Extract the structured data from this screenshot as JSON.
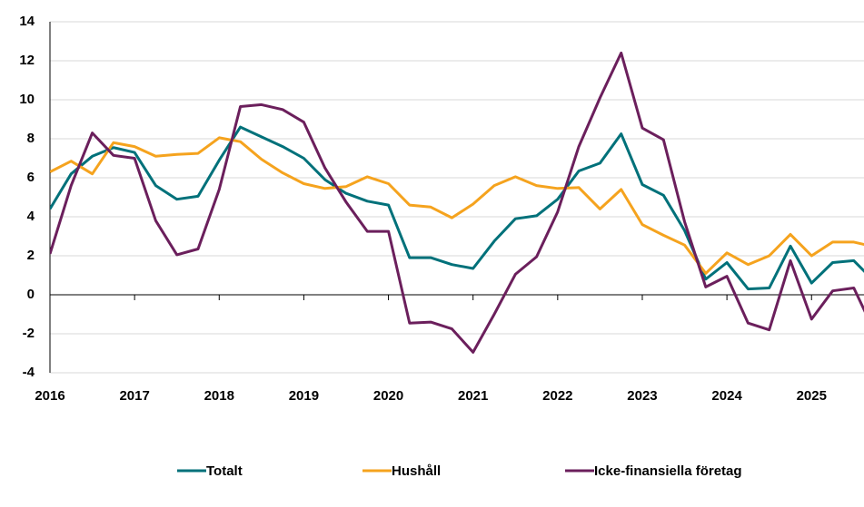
{
  "chart_data": {
    "type": "line",
    "x": [
      2016,
      2016.25,
      2016.5,
      2016.75,
      2017,
      2017.25,
      2017.5,
      2017.75,
      2018,
      2018.25,
      2018.5,
      2018.75,
      2019,
      2019.25,
      2019.5,
      2019.75,
      2020,
      2020.25,
      2020.5,
      2020.75,
      2021,
      2021.25,
      2021.5,
      2021.75,
      2022,
      2022.25,
      2022.5,
      2022.75,
      2023,
      2023.25,
      2023.5,
      2023.75,
      2024,
      2024.25,
      2024.5,
      2024.75,
      2025,
      2025.25,
      2025.5,
      2025.75
    ],
    "series": [
      {
        "name": "Totalt",
        "color": "#00717a",
        "values": [
          4.4,
          6.2,
          7.1,
          7.55,
          7.3,
          5.6,
          4.9,
          5.05,
          6.9,
          8.6,
          8.1,
          7.6,
          7.0,
          5.9,
          5.2,
          4.8,
          4.6,
          1.9,
          1.9,
          1.55,
          1.35,
          2.75,
          3.9,
          4.05,
          4.9,
          6.35,
          6.75,
          8.25,
          5.65,
          5.1,
          3.3,
          0.8,
          1.65,
          0.3,
          0.35,
          2.5,
          0.6,
          1.65,
          1.75,
          0.65
        ]
      },
      {
        "name": "Hushåll",
        "color": "#f5a31e",
        "values": [
          6.3,
          6.85,
          6.2,
          7.8,
          7.6,
          7.1,
          7.2,
          7.25,
          8.05,
          7.85,
          6.95,
          6.25,
          5.7,
          5.45,
          5.55,
          6.05,
          5.7,
          4.6,
          4.5,
          3.95,
          4.65,
          5.6,
          6.05,
          5.6,
          5.45,
          5.5,
          4.4,
          5.4,
          3.6,
          3.05,
          2.55,
          1.1,
          2.15,
          1.55,
          2.0,
          3.1,
          2.0,
          2.7,
          2.7,
          2.45
        ]
      },
      {
        "name": "Icke-finansiella företag",
        "color": "#6b1f5c",
        "values": [
          2.1,
          5.6,
          8.3,
          7.15,
          7.0,
          3.8,
          2.05,
          2.35,
          5.4,
          9.65,
          9.75,
          9.5,
          8.85,
          6.5,
          4.75,
          3.25,
          3.25,
          -1.45,
          -1.4,
          -1.75,
          -2.95,
          -1.0,
          1.05,
          1.95,
          4.25,
          7.6,
          10.1,
          12.4,
          8.55,
          7.95,
          3.75,
          0.4,
          0.95,
          -1.45,
          -1.8,
          1.75,
          -1.25,
          0.2,
          0.35,
          -1.95
        ]
      }
    ],
    "xlim": [
      2016,
      2025.62
    ],
    "xticks": [
      2016,
      2017,
      2018,
      2019,
      2020,
      2021,
      2022,
      2023,
      2024,
      2025
    ],
    "ylim": [
      -4,
      14
    ],
    "yticks": [
      -4,
      -2,
      0,
      2,
      4,
      6,
      8,
      10,
      12,
      14
    ],
    "grid": true
  }
}
